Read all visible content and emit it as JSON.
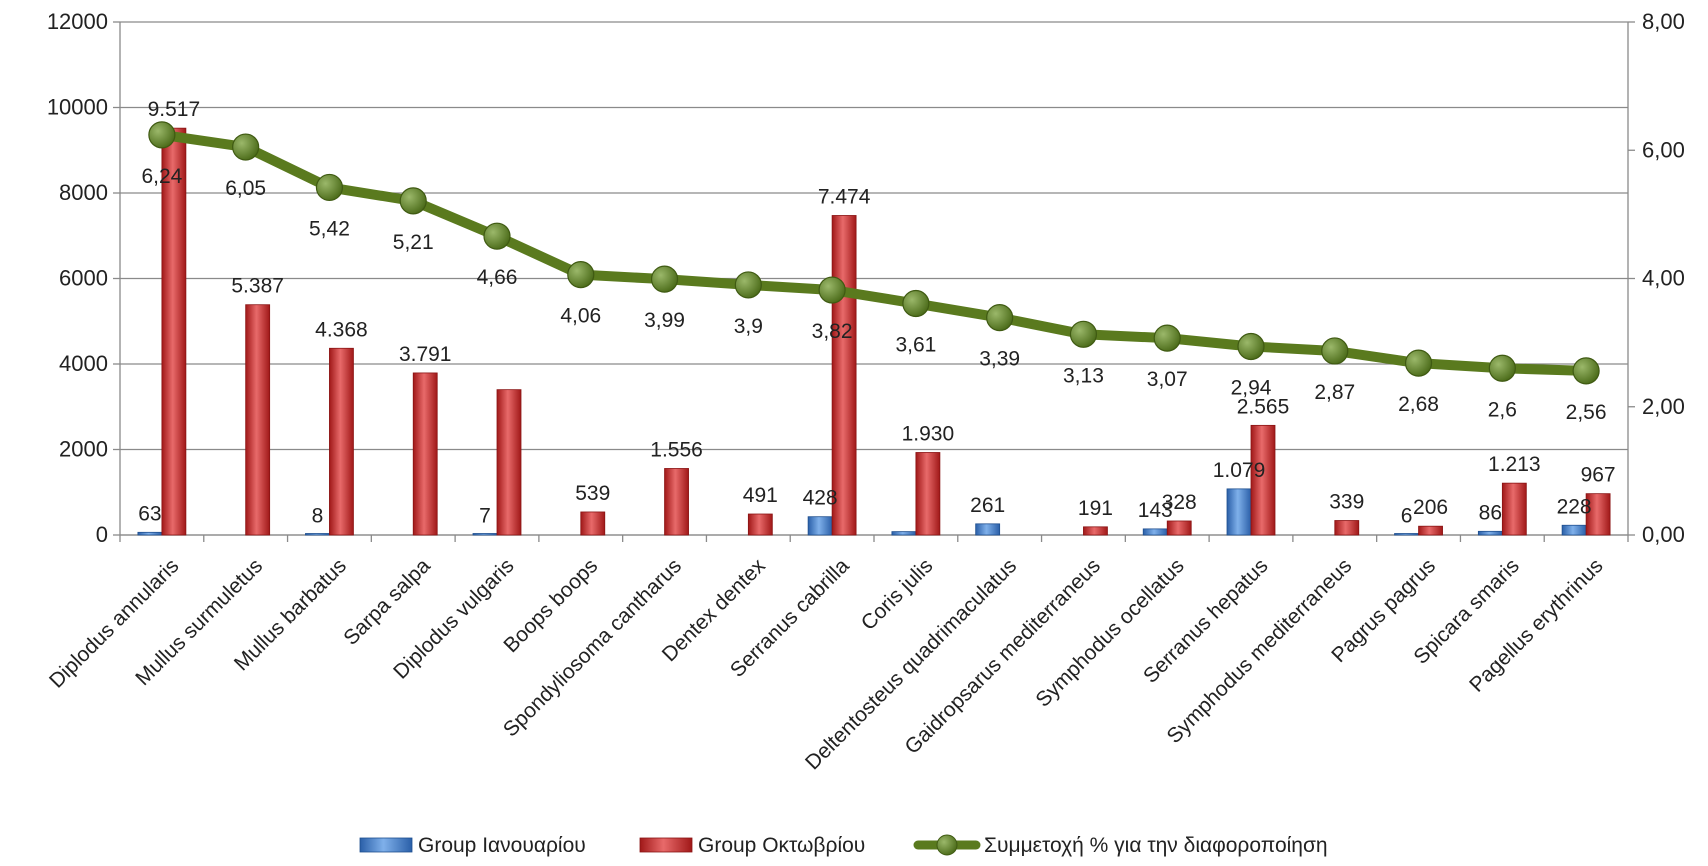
{
  "chart_data": {
    "type": "bar",
    "categories": [
      "Diplodus annularis",
      "Mullus surmuletus",
      "Mullus barbatus",
      "Sarpa salpa",
      "Diplodus vulgaris",
      "Boops boops",
      "Spondyliosoma cantharus",
      "Dentex dentex",
      "Serranus cabrilla",
      "Coris julis",
      "Deltentosteus quadrimaculatus",
      "Gaidropsarus mediterraneus",
      "Symphodus ocellatus",
      "Serranus hepatus",
      "Symphodus mediterraneus",
      "Pagrus pagrus",
      "Spicara smaris",
      "Pagellus erythrinus"
    ],
    "series": [
      {
        "name": "Group Ιανουαρίου",
        "type": "bar",
        "axis": "left",
        "color": "#4a86cc",
        "values": [
          63,
          null,
          8,
          null,
          7,
          null,
          null,
          null,
          428,
          79,
          261,
          null,
          143,
          1079,
          null,
          6,
          86,
          228
        ],
        "labels": [
          "63",
          "",
          "8",
          "",
          "7",
          "",
          "",
          "",
          "428",
          "",
          "261",
          "",
          "143",
          "1.079",
          "",
          "6",
          "86",
          "228"
        ]
      },
      {
        "name": "Group Οκτωβρίου",
        "type": "bar",
        "axis": "left",
        "color": "#cc3333",
        "values": [
          9517,
          5387,
          4368,
          3791,
          3400,
          539,
          1556,
          491,
          7474,
          1930,
          null,
          191,
          328,
          2565,
          339,
          206,
          1213,
          967
        ],
        "labels": [
          "9.517",
          "5.387",
          "4.368",
          "3.791",
          "",
          "539",
          "1.556",
          "491",
          "7.474",
          "1.930",
          "",
          "191",
          "328",
          "2.565",
          "339",
          "206",
          "1.213",
          "967"
        ]
      },
      {
        "name": "Συμμετοχή % για την διαφοροποίηση",
        "type": "line",
        "axis": "right",
        "color": "#5a7a1e",
        "values": [
          6.24,
          6.05,
          5.42,
          5.21,
          4.66,
          4.06,
          3.99,
          3.9,
          3.82,
          3.61,
          3.39,
          3.13,
          3.07,
          2.94,
          2.87,
          2.68,
          2.6,
          2.56
        ],
        "labels": [
          "6,24",
          "6,05",
          "5,42",
          "5,21",
          "4,66",
          "4,06",
          "3,99",
          "3,9",
          "3,82",
          "3,61",
          "3,39",
          "3,13",
          "3,07",
          "2,94",
          "2,87",
          "2,68",
          "2,6",
          "2,56"
        ]
      }
    ],
    "y_left": {
      "min": 0,
      "max": 12000,
      "ticks": [
        "0",
        "2000",
        "4000",
        "6000",
        "8000",
        "10000",
        "12000"
      ]
    },
    "y_right": {
      "min": 0,
      "max": 8,
      "ticks": [
        "0,00",
        "2,00",
        "4,00",
        "6,00",
        "8,00"
      ]
    },
    "grid": true,
    "legend": "bottom"
  }
}
